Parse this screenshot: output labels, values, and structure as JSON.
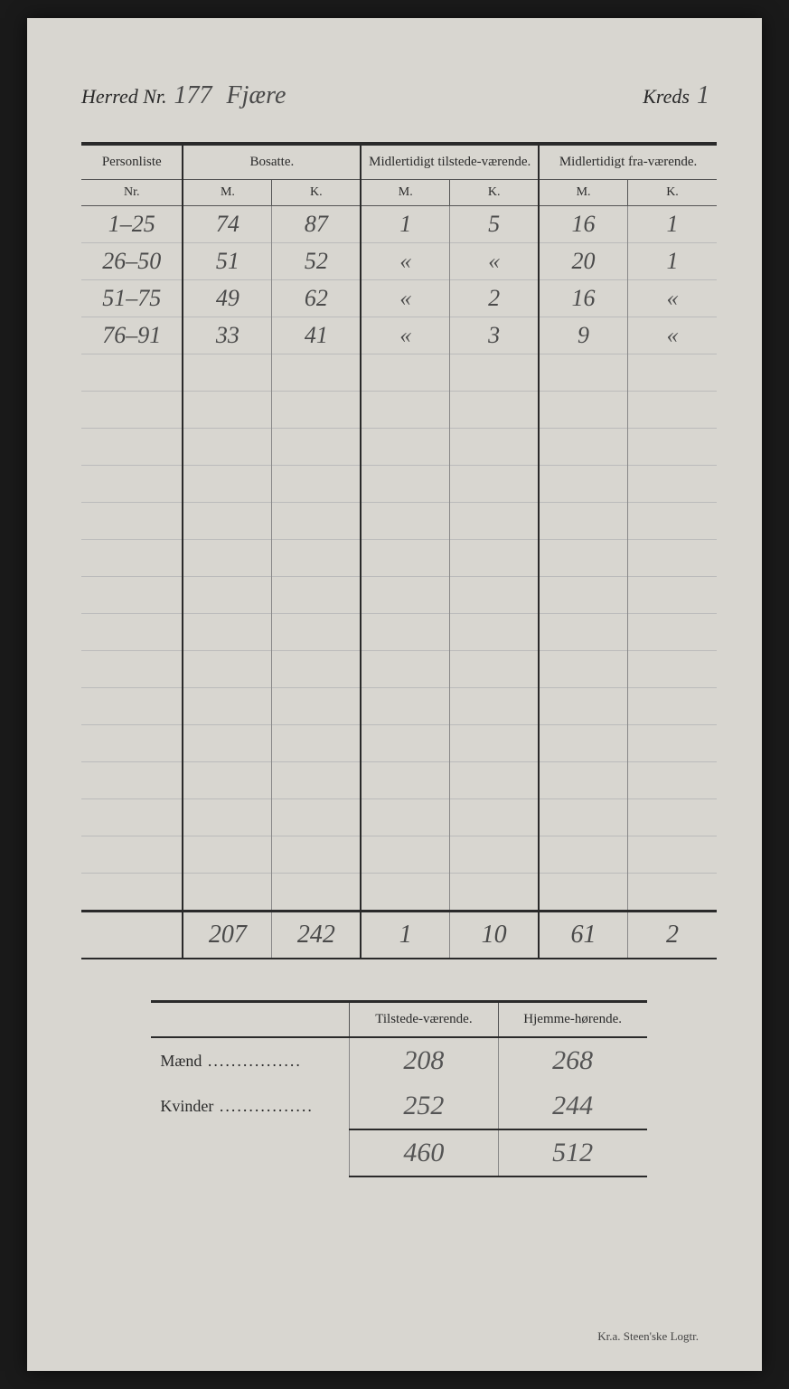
{
  "header": {
    "herred_label": "Herred Nr.",
    "herred_nr": "177",
    "herred_name": "Fjære",
    "kreds_label": "Kreds",
    "kreds_nr": "1"
  },
  "main_table": {
    "columns": {
      "personliste": "Personliste",
      "nr": "Nr.",
      "bosatte": "Bosatte.",
      "midl_tilstede": "Midlertidigt tilstede-værende.",
      "midl_fra": "Midlertidigt fra-værende.",
      "m": "M.",
      "k": "K."
    },
    "rows": [
      {
        "nr": "1–25",
        "bm": "74",
        "bk": "87",
        "tm": "1",
        "tk": "5",
        "fm": "16",
        "fk": "1"
      },
      {
        "nr": "26–50",
        "bm": "51",
        "bk": "52",
        "tm": "«",
        "tk": "«",
        "fm": "20",
        "fk": "1"
      },
      {
        "nr": "51–75",
        "bm": "49",
        "bk": "62",
        "tm": "«",
        "tk": "2",
        "fm": "16",
        "fk": "«"
      },
      {
        "nr": "76–91",
        "bm": "33",
        "bk": "41",
        "tm": "«",
        "tk": "3",
        "fm": "9",
        "fk": "«"
      }
    ],
    "empty_row_count": 15,
    "totals": {
      "bm": "207",
      "bk": "242",
      "tm": "1",
      "tk": "10",
      "fm": "61",
      "fk": "2"
    }
  },
  "summary_table": {
    "col_tilstede": "Tilstede-værende.",
    "col_hjemme": "Hjemme-hørende.",
    "rows": [
      {
        "label": "Mænd",
        "tilstede": "208",
        "hjemme": "268"
      },
      {
        "label": "Kvinder",
        "tilstede": "252",
        "hjemme": "244"
      }
    ],
    "totals": {
      "tilstede": "460",
      "hjemme": "512"
    }
  },
  "footer": "Kr.a.  Steen'ske Logtr."
}
